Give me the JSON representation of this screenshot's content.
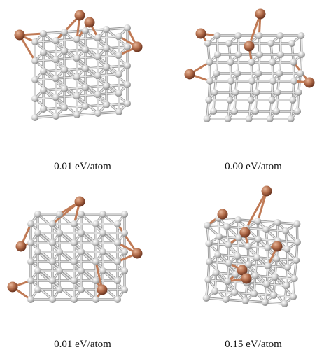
{
  "captions": [
    "0.01 eV/atom",
    "0.00 eV/atom",
    "0.01 eV/atom",
    "0.15 eV/atom"
  ],
  "colors": {
    "host_atom": "#cfcfcf",
    "host_bond": "#c4c4c4",
    "dopant_atom": "#b06a48",
    "dopant_bond": "#c07a55"
  }
}
